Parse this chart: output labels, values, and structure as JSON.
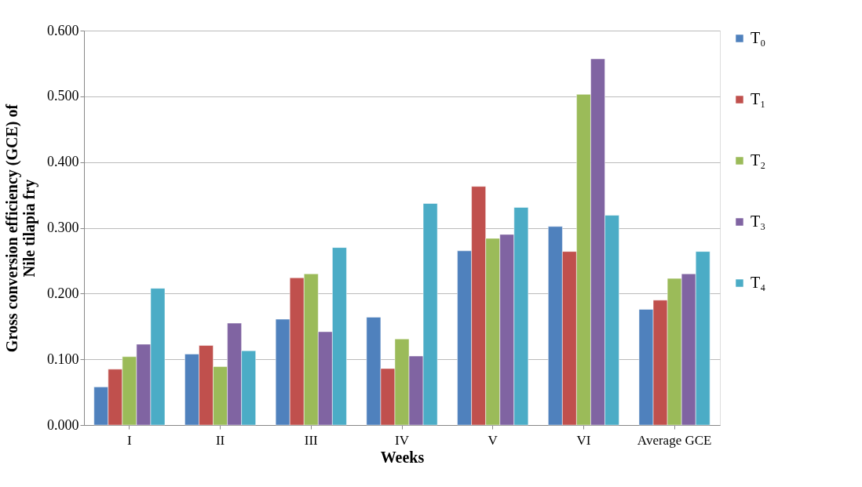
{
  "chart_data": {
    "type": "bar",
    "xlabel": "Weeks",
    "ylabel": "Gross conversion efficiency (GCE) of Nile tilapia fry",
    "categories": [
      "I",
      "II",
      "III",
      "IV",
      "V",
      "VI",
      "Average GCE"
    ],
    "series": [
      {
        "name": "T₀",
        "color": "#4f81bd",
        "values": [
          0.058,
          0.108,
          0.161,
          0.164,
          0.265,
          0.302,
          0.176
        ]
      },
      {
        "name": "T₁",
        "color": "#c0504d",
        "values": [
          0.085,
          0.121,
          0.224,
          0.086,
          0.363,
          0.264,
          0.19
        ]
      },
      {
        "name": "T₂",
        "color": "#9bbb59",
        "values": [
          0.104,
          0.089,
          0.23,
          0.131,
          0.284,
          0.503,
          0.223
        ]
      },
      {
        "name": "T₃",
        "color": "#8064a2",
        "values": [
          0.123,
          0.155,
          0.142,
          0.105,
          0.29,
          0.557,
          0.23
        ]
      },
      {
        "name": "T₄",
        "color": "#4bacc6",
        "values": [
          0.208,
          0.113,
          0.27,
          0.337,
          0.331,
          0.319,
          0.264
        ]
      }
    ],
    "ylim": [
      0,
      0.6
    ],
    "yticks": [
      {
        "value": 0,
        "label": "0.000"
      },
      {
        "value": 0.1,
        "label": "0.100"
      },
      {
        "value": 0.2,
        "label": "0.200"
      },
      {
        "value": 0.3,
        "label": "0.300"
      },
      {
        "value": 0.4,
        "label": "0.400"
      },
      {
        "value": 0.5,
        "label": "0.500"
      },
      {
        "value": 0.6,
        "label": "0.600"
      }
    ],
    "grid": "y",
    "legend": "right"
  }
}
